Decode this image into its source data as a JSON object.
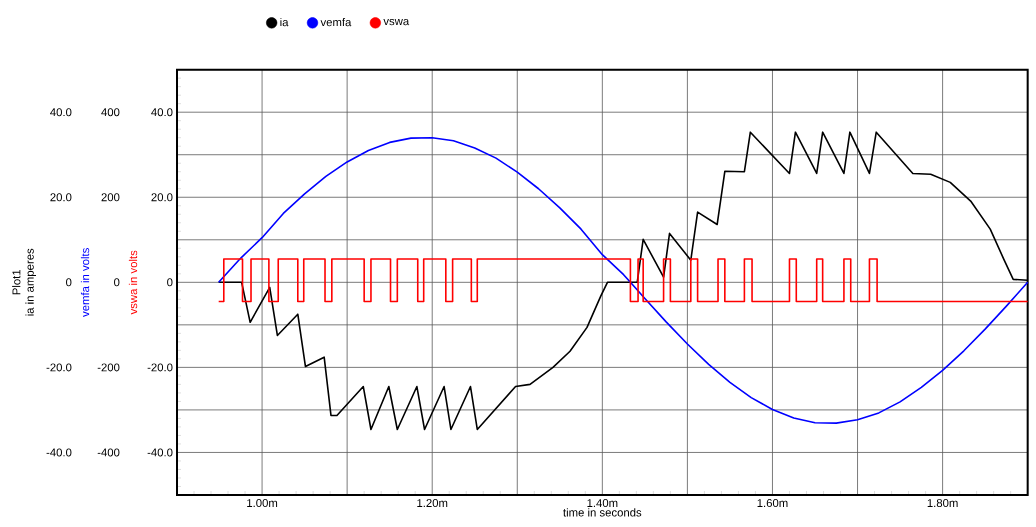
{
  "chart_data": {
    "type": "line",
    "xlabel": "time in seconds",
    "ylabel": "ia in amperes",
    "y2label": "vemfa in volts",
    "y3label": "vswa in volts",
    "annotations": [
      "Plot1"
    ],
    "xlim": [
      0.9,
      1.9
    ],
    "xticks": [
      {
        "value": 0.9,
        "label": null
      },
      {
        "value": 1.0,
        "label": "1.00m"
      },
      {
        "value": 1.1,
        "label": null
      },
      {
        "value": 1.2,
        "label": "1.20m"
      },
      {
        "value": 1.3,
        "label": null
      },
      {
        "value": 1.4,
        "label": "1.40m"
      },
      {
        "value": 1.5,
        "label": null
      },
      {
        "value": 1.6,
        "label": "1.60m"
      },
      {
        "value": 1.7,
        "label": null
      },
      {
        "value": 1.8,
        "label": "1.80m"
      },
      {
        "value": 1.9,
        "label": null
      }
    ],
    "ylim": [
      -50,
      50
    ],
    "yticks": [
      {
        "value": -50,
        "label": null
      },
      {
        "value": -40,
        "label": "-40.0"
      },
      {
        "value": -30,
        "label": null
      },
      {
        "value": -20,
        "label": "-20.0"
      },
      {
        "value": -10,
        "label": null
      },
      0,
      {
        "value": 10,
        "label": null
      },
      {
        "value": 20,
        "label": "20.0"
      },
      {
        "value": 30,
        "label": null
      },
      {
        "value": 40,
        "label": "40.0"
      },
      {
        "value": 50,
        "label": null
      }
    ],
    "y2lim": [
      -500,
      500
    ],
    "y2ticks": [
      -400,
      -200,
      0,
      200,
      400
    ],
    "y3lim": [
      -50,
      50
    ],
    "y3ticks": [
      {
        "value": -40,
        "label": "-40.0"
      },
      {
        "value": -20,
        "label": "-20.0"
      },
      0,
      {
        "value": 20,
        "label": "20.0"
      },
      {
        "value": 40,
        "label": "40.0"
      }
    ],
    "grid": true,
    "legend": "top left",
    "series": [
      {
        "name": "ia",
        "color": "#000000",
        "type": "line",
        "axis": "y",
        "x": [
          0.949,
          0.976,
          0.986,
          1.009,
          1.018,
          1.042,
          1.051,
          1.073,
          1.081,
          1.088,
          1.119,
          1.128,
          1.149,
          1.159,
          1.182,
          1.191,
          1.214,
          1.222,
          1.245,
          1.253,
          1.298,
          1.315,
          1.342,
          1.362,
          1.382,
          1.398,
          1.406,
          1.441,
          1.448,
          1.472,
          1.479,
          1.504,
          1.512,
          1.535,
          1.544,
          1.567,
          1.574,
          1.62,
          1.627,
          1.652,
          1.659,
          1.684,
          1.691,
          1.714,
          1.722,
          1.765,
          1.786,
          1.809,
          1.833,
          1.856,
          1.872,
          1.883,
          1.9
        ],
        "values": [
          0,
          0,
          -9.4,
          -1.2,
          -12.5,
          -7.5,
          -19.8,
          -17.6,
          -31.3,
          -31.3,
          -24.5,
          -34.6,
          -24.5,
          -34.6,
          -24.5,
          -34.6,
          -24.5,
          -34.6,
          -24.5,
          -34.6,
          -24.5,
          -24,
          -20,
          -16.2,
          -10.6,
          -3.3,
          0,
          0,
          10.1,
          1.2,
          11.5,
          5.2,
          16.5,
          13.6,
          26.1,
          26,
          35.3,
          25.6,
          35.3,
          25.6,
          35.3,
          25.6,
          35.3,
          25.6,
          35.3,
          25.6,
          25.4,
          23.5,
          19.1,
          12.5,
          5.4,
          0.7,
          0.5
        ]
      },
      {
        "name": "vemfa",
        "color": "#0000ff",
        "type": "line",
        "axis": "y2",
        "x": [
          0.949,
          0.975,
          1.0,
          1.025,
          1.05,
          1.075,
          1.1,
          1.125,
          1.15,
          1.175,
          1.2,
          1.225,
          1.25,
          1.275,
          1.3,
          1.325,
          1.35,
          1.375,
          1.4,
          1.425,
          1.433,
          1.45,
          1.475,
          1.5,
          1.525,
          1.55,
          1.575,
          1.6,
          1.625,
          1.65,
          1.675,
          1.7,
          1.725,
          1.75,
          1.775,
          1.8,
          1.825,
          1.85,
          1.875,
          1.9
        ],
        "values": [
          0,
          57,
          105,
          162,
          208,
          249,
          283,
          310,
          329,
          339,
          340,
          333,
          316,
          292,
          259,
          220,
          175,
          125,
          65,
          18,
          0,
          -38,
          -93,
          -145,
          -193,
          -235,
          -271,
          -299,
          -319,
          -330,
          -331,
          -323,
          -307,
          -281,
          -247,
          -207,
          -161,
          -110,
          -56,
          0
        ]
      },
      {
        "name": "vswa",
        "color": "#ff0000",
        "type": "step",
        "axis": "y3",
        "x": [
          0.949,
          0.955,
          0.977,
          0.987,
          1.008,
          1.019,
          1.042,
          1.049,
          1.074,
          1.082,
          1.12,
          1.128,
          1.151,
          1.159,
          1.183,
          1.19,
          1.216,
          1.224,
          1.246,
          1.253,
          1.433,
          1.442,
          1.448,
          1.472,
          1.48,
          1.504,
          1.512,
          1.536,
          1.544,
          1.567,
          1.576,
          1.62,
          1.628,
          1.652,
          1.659,
          1.684,
          1.692,
          1.714,
          1.723,
          1.9
        ],
        "values": [
          -4.5,
          5.5,
          -4.5,
          5.5,
          -4.5,
          5.5,
          -4.5,
          5.5,
          -4.5,
          5.5,
          -4.5,
          5.5,
          -4.5,
          5.5,
          -4.5,
          5.5,
          -4.5,
          5.5,
          -4.5,
          5.5,
          -4.5,
          5.5,
          -4.5,
          5.5,
          -4.5,
          5.5,
          -4.5,
          5.5,
          -4.5,
          5.5,
          -4.5,
          5.5,
          -4.5,
          5.5,
          -4.5,
          5.5,
          -4.5,
          5.5,
          -4.5,
          -4.5
        ]
      }
    ]
  }
}
